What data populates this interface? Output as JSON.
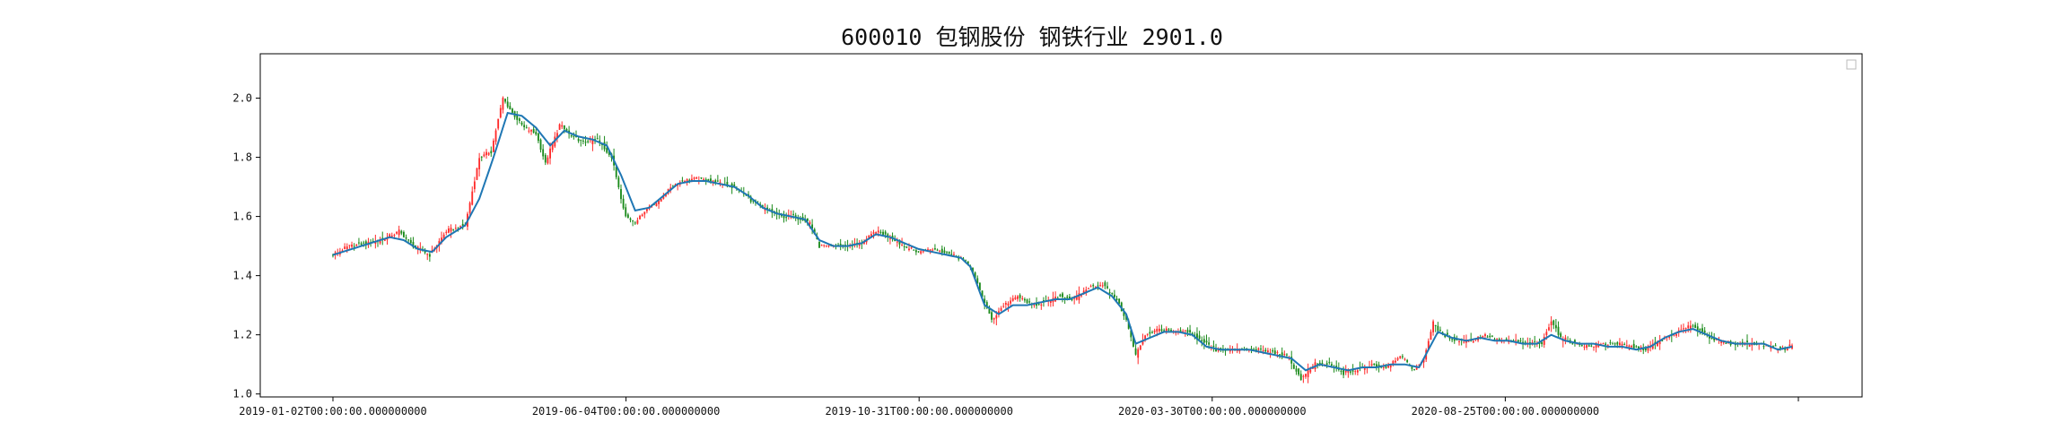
{
  "title": "600010 包钢股份 钢铁行业 2901.0",
  "chart_data": {
    "type": "candlestick",
    "title": "600010 包钢股份 钢铁行业 2901.0",
    "xlabel": "",
    "ylabel": "",
    "ylim": [
      0.99,
      2.15
    ],
    "grid": false,
    "legend": "top-right (empty)",
    "y_ticks": [
      "1.0",
      "1.2",
      "1.4",
      "1.6",
      "1.8",
      "2.0"
    ],
    "x_ticks": [
      "2019-01-02T00:00:00.000000000",
      "2019-06-04T00:00:00.000000000",
      "2019-10-31T00:00:00.000000000",
      "2020-03-30T00:00:00.000000000",
      "2020-08-25T00:00:00.000000000",
      ""
    ],
    "colors": {
      "up": "#ff2a2a",
      "down": "#1a8a1a",
      "ma": "#1f77b4"
    },
    "close_path": [
      [
        0,
        1.47
      ],
      [
        7,
        1.5
      ],
      [
        14,
        1.51
      ],
      [
        21,
        1.52
      ],
      [
        28,
        1.55
      ],
      [
        34,
        1.5
      ],
      [
        41,
        1.47
      ],
      [
        48,
        1.55
      ],
      [
        56,
        1.57
      ],
      [
        62,
        1.8
      ],
      [
        67,
        1.82
      ],
      [
        72,
        2.0
      ],
      [
        76,
        1.95
      ],
      [
        81,
        1.9
      ],
      [
        86,
        1.88
      ],
      [
        90,
        1.78
      ],
      [
        96,
        1.91
      ],
      [
        101,
        1.87
      ],
      [
        106,
        1.85
      ],
      [
        112,
        1.86
      ],
      [
        118,
        1.8
      ],
      [
        124,
        1.6
      ],
      [
        128,
        1.58
      ],
      [
        133,
        1.63
      ],
      [
        138,
        1.65
      ],
      [
        143,
        1.7
      ],
      [
        148,
        1.72
      ],
      [
        154,
        1.73
      ],
      [
        160,
        1.72
      ],
      [
        166,
        1.71
      ],
      [
        172,
        1.69
      ],
      [
        178,
        1.65
      ],
      [
        184,
        1.62
      ],
      [
        190,
        1.6
      ],
      [
        196,
        1.6
      ],
      [
        202,
        1.58
      ],
      [
        206,
        1.5
      ],
      [
        212,
        1.5
      ],
      [
        218,
        1.5
      ],
      [
        224,
        1.51
      ],
      [
        230,
        1.55
      ],
      [
        236,
        1.53
      ],
      [
        242,
        1.5
      ],
      [
        248,
        1.48
      ],
      [
        254,
        1.49
      ],
      [
        260,
        1.48
      ],
      [
        266,
        1.46
      ],
      [
        270,
        1.43
      ],
      [
        274,
        1.35
      ],
      [
        279,
        1.25
      ],
      [
        284,
        1.3
      ],
      [
        290,
        1.33
      ],
      [
        296,
        1.3
      ],
      [
        302,
        1.31
      ],
      [
        308,
        1.33
      ],
      [
        314,
        1.32
      ],
      [
        320,
        1.36
      ],
      [
        326,
        1.37
      ],
      [
        332,
        1.32
      ],
      [
        336,
        1.25
      ],
      [
        340,
        1.13
      ],
      [
        344,
        1.2
      ],
      [
        350,
        1.22
      ],
      [
        356,
        1.21
      ],
      [
        362,
        1.21
      ],
      [
        368,
        1.18
      ],
      [
        374,
        1.15
      ],
      [
        380,
        1.15
      ],
      [
        386,
        1.15
      ],
      [
        392,
        1.15
      ],
      [
        398,
        1.14
      ],
      [
        404,
        1.13
      ],
      [
        410,
        1.05
      ],
      [
        416,
        1.1
      ],
      [
        422,
        1.1
      ],
      [
        428,
        1.07
      ],
      [
        434,
        1.08
      ],
      [
        440,
        1.1
      ],
      [
        446,
        1.09
      ],
      [
        452,
        1.13
      ],
      [
        458,
        1.08
      ],
      [
        462,
        1.12
      ],
      [
        466,
        1.24
      ],
      [
        470,
        1.2
      ],
      [
        476,
        1.18
      ],
      [
        482,
        1.18
      ],
      [
        488,
        1.2
      ],
      [
        494,
        1.18
      ],
      [
        500,
        1.18
      ],
      [
        506,
        1.17
      ],
      [
        512,
        1.17
      ],
      [
        516,
        1.25
      ],
      [
        520,
        1.19
      ],
      [
        526,
        1.17
      ],
      [
        532,
        1.16
      ],
      [
        538,
        1.17
      ],
      [
        544,
        1.17
      ],
      [
        550,
        1.16
      ],
      [
        556,
        1.15
      ],
      [
        562,
        1.18
      ],
      [
        568,
        1.2
      ],
      [
        572,
        1.22
      ],
      [
        576,
        1.23
      ],
      [
        580,
        1.21
      ],
      [
        586,
        1.18
      ],
      [
        592,
        1.17
      ],
      [
        598,
        1.17
      ],
      [
        604,
        1.17
      ],
      [
        610,
        1.16
      ],
      [
        615,
        1.15
      ],
      [
        618,
        1.17
      ]
    ],
    "ma_path": [
      [
        0,
        1.47
      ],
      [
        8,
        1.49
      ],
      [
        16,
        1.51
      ],
      [
        24,
        1.53
      ],
      [
        30,
        1.52
      ],
      [
        36,
        1.49
      ],
      [
        42,
        1.48
      ],
      [
        48,
        1.53
      ],
      [
        56,
        1.57
      ],
      [
        62,
        1.66
      ],
      [
        68,
        1.8
      ],
      [
        74,
        1.95
      ],
      [
        80,
        1.94
      ],
      [
        86,
        1.9
      ],
      [
        92,
        1.84
      ],
      [
        98,
        1.89
      ],
      [
        104,
        1.87
      ],
      [
        110,
        1.86
      ],
      [
        116,
        1.84
      ],
      [
        122,
        1.74
      ],
      [
        128,
        1.62
      ],
      [
        134,
        1.63
      ],
      [
        140,
        1.67
      ],
      [
        146,
        1.71
      ],
      [
        152,
        1.72
      ],
      [
        158,
        1.72
      ],
      [
        164,
        1.71
      ],
      [
        170,
        1.7
      ],
      [
        176,
        1.67
      ],
      [
        182,
        1.63
      ],
      [
        188,
        1.61
      ],
      [
        194,
        1.6
      ],
      [
        200,
        1.59
      ],
      [
        206,
        1.52
      ],
      [
        212,
        1.5
      ],
      [
        218,
        1.5
      ],
      [
        224,
        1.51
      ],
      [
        230,
        1.54
      ],
      [
        236,
        1.53
      ],
      [
        242,
        1.51
      ],
      [
        248,
        1.49
      ],
      [
        254,
        1.48
      ],
      [
        260,
        1.47
      ],
      [
        266,
        1.46
      ],
      [
        270,
        1.43
      ],
      [
        276,
        1.3
      ],
      [
        282,
        1.27
      ],
      [
        288,
        1.3
      ],
      [
        294,
        1.3
      ],
      [
        300,
        1.31
      ],
      [
        306,
        1.32
      ],
      [
        312,
        1.32
      ],
      [
        318,
        1.34
      ],
      [
        324,
        1.36
      ],
      [
        330,
        1.33
      ],
      [
        336,
        1.27
      ],
      [
        340,
        1.17
      ],
      [
        346,
        1.19
      ],
      [
        352,
        1.21
      ],
      [
        358,
        1.21
      ],
      [
        364,
        1.2
      ],
      [
        370,
        1.16
      ],
      [
        376,
        1.15
      ],
      [
        382,
        1.15
      ],
      [
        388,
        1.15
      ],
      [
        394,
        1.14
      ],
      [
        400,
        1.13
      ],
      [
        406,
        1.12
      ],
      [
        412,
        1.08
      ],
      [
        418,
        1.1
      ],
      [
        424,
        1.09
      ],
      [
        430,
        1.08
      ],
      [
        436,
        1.09
      ],
      [
        442,
        1.09
      ],
      [
        448,
        1.1
      ],
      [
        454,
        1.1
      ],
      [
        460,
        1.09
      ],
      [
        464,
        1.15
      ],
      [
        468,
        1.21
      ],
      [
        474,
        1.19
      ],
      [
        480,
        1.18
      ],
      [
        486,
        1.19
      ],
      [
        492,
        1.18
      ],
      [
        498,
        1.18
      ],
      [
        504,
        1.17
      ],
      [
        510,
        1.17
      ],
      [
        516,
        1.2
      ],
      [
        522,
        1.18
      ],
      [
        528,
        1.17
      ],
      [
        534,
        1.17
      ],
      [
        540,
        1.16
      ],
      [
        546,
        1.16
      ],
      [
        552,
        1.15
      ],
      [
        558,
        1.16
      ],
      [
        564,
        1.19
      ],
      [
        570,
        1.21
      ],
      [
        576,
        1.22
      ],
      [
        582,
        1.2
      ],
      [
        588,
        1.18
      ],
      [
        594,
        1.17
      ],
      [
        600,
        1.17
      ],
      [
        606,
        1.17
      ],
      [
        612,
        1.15
      ],
      [
        618,
        1.16
      ]
    ],
    "num_points": 619
  }
}
